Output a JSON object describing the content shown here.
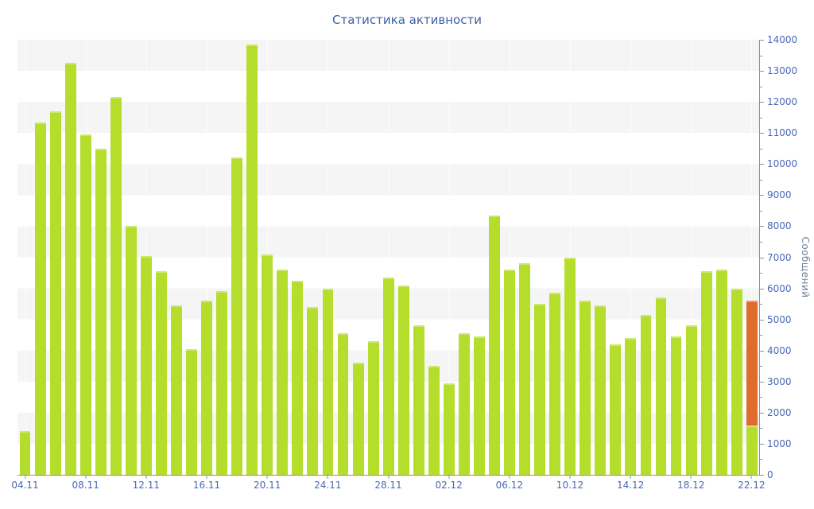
{
  "title": "Статистика активности",
  "y_axis": {
    "label": "Сообщений",
    "min": 0,
    "max": 14000,
    "step": 1000,
    "minor_step": 500,
    "tick_labels": [
      "0",
      "1000",
      "2000",
      "3000",
      "4000",
      "5000",
      "6000",
      "7000",
      "8000",
      "9000",
      "10000",
      "11000",
      "12000",
      "13000",
      "14000"
    ]
  },
  "x_axis": {
    "label_every": 4,
    "tick_labels": [
      "04.11",
      "08.11",
      "12.11",
      "16.11",
      "20.11",
      "24.11",
      "28.11",
      "02.12",
      "06.12",
      "10.12",
      "14.12",
      "18.12",
      "22.12"
    ]
  },
  "chart_data": {
    "type": "bar",
    "title": "Статистика активности",
    "xlabel": "",
    "ylabel": "Сообщений",
    "ylim": [
      0,
      14000
    ],
    "grid": "horizontal-bands",
    "legend": "none",
    "categories": [
      "04.11",
      "05.11",
      "06.11",
      "07.11",
      "08.11",
      "09.11",
      "10.11",
      "11.11",
      "12.11",
      "13.11",
      "14.11",
      "15.11",
      "16.11",
      "17.11",
      "18.11",
      "19.11",
      "20.11",
      "21.11",
      "22.11",
      "23.11",
      "24.11",
      "25.11",
      "26.11",
      "27.11",
      "28.11",
      "29.11",
      "30.11",
      "01.12",
      "02.12",
      "03.12",
      "04.12",
      "05.12",
      "06.12",
      "07.12",
      "08.12",
      "09.12",
      "10.12",
      "11.12",
      "12.12",
      "13.12",
      "14.12",
      "15.12",
      "16.12",
      "17.12",
      "18.12",
      "19.12",
      "20.12",
      "21.12",
      "22.12"
    ],
    "values": [
      1400,
      11350,
      11700,
      13250,
      10950,
      10500,
      12150,
      8000,
      7050,
      6550,
      5450,
      4050,
      5600,
      5900,
      10200,
      13850,
      7100,
      6600,
      6250,
      5400,
      6000,
      4550,
      3600,
      4300,
      6350,
      6100,
      4800,
      3500,
      2950,
      4550,
      4450,
      8350,
      6600,
      6800,
      5500,
      5850,
      7000,
      5600,
      5450,
      4200,
      4400,
      5150,
      5700,
      4450,
      4800,
      6550,
      6600,
      6000,
      5600
    ],
    "last_bar_split": {
      "category": "22.12",
      "total_value": 5600,
      "bottom_green_value": 1600,
      "top_orange_value": 4000
    }
  },
  "colors": {
    "bar_green": "#b5dd2c",
    "bar_orange": "#df6b2c",
    "band_gray": "#f5f5f6",
    "axis_line": "#7d90bd",
    "tick_label": "#4a68b4",
    "title_text": "#3e5fa6",
    "y_axis_title": "#6e7f9e"
  }
}
